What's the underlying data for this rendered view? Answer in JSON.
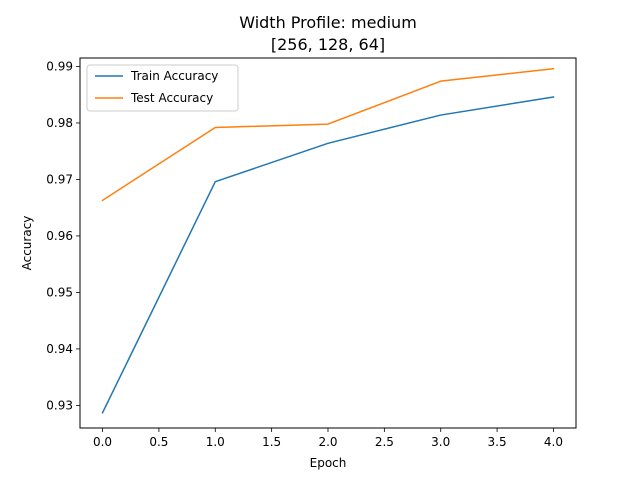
{
  "chart_data": {
    "type": "line",
    "title": "Width Profile: medium",
    "subtitle": "[256, 128, 64]",
    "xlabel": "Epoch",
    "ylabel": "Accuracy",
    "x": [
      0,
      1,
      2,
      3,
      4
    ],
    "xlim": [
      -0.2,
      4.2
    ],
    "ylim": [
      0.926,
      0.9915
    ],
    "xticks": [
      "0.0",
      "0.5",
      "1.0",
      "1.5",
      "2.0",
      "2.5",
      "3.0",
      "3.5",
      "4.0"
    ],
    "yticks": [
      "0.93",
      "0.94",
      "0.95",
      "0.96",
      "0.97",
      "0.98",
      "0.99"
    ],
    "grid": false,
    "legend_position": "upper-left",
    "series": [
      {
        "name": "Train Accuracy",
        "color": "#1f77b4",
        "values": [
          0.9287,
          0.9696,
          0.9764,
          0.9814,
          0.9846
        ]
      },
      {
        "name": "Test Accuracy",
        "color": "#ff7f0e",
        "values": [
          0.9663,
          0.9792,
          0.9798,
          0.9874,
          0.9896
        ]
      }
    ]
  }
}
